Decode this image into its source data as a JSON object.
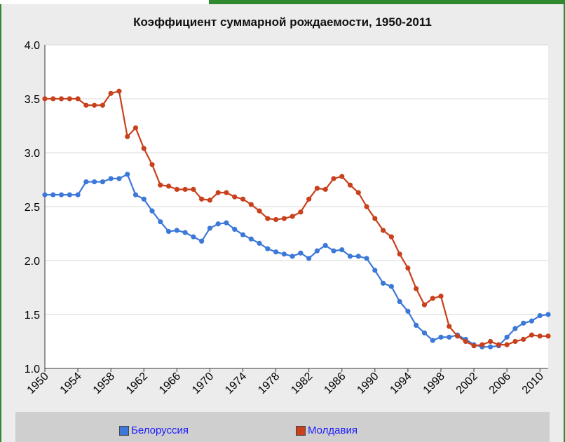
{
  "chart_data": {
    "type": "line",
    "title": "Коэффициент суммарной рождаемости, 1950-2011",
    "xlabel": "",
    "ylabel": "",
    "xlim": [
      1950,
      2011
    ],
    "ylim": [
      1.0,
      4.0
    ],
    "y_ticks": [
      "1.0",
      "1.5",
      "2.0",
      "2.5",
      "3.0",
      "3.5",
      "4.0"
    ],
    "x_ticks": [
      "1950",
      "1954",
      "1958",
      "1962",
      "1966",
      "1970",
      "1974",
      "1978",
      "1982",
      "1986",
      "1990",
      "1994",
      "1998",
      "2002",
      "2006",
      "2010"
    ],
    "grid": true,
    "legend_position": "bottom",
    "x": [
      1950,
      1951,
      1952,
      1953,
      1954,
      1955,
      1956,
      1957,
      1958,
      1959,
      1960,
      1961,
      1962,
      1963,
      1964,
      1965,
      1966,
      1967,
      1968,
      1969,
      1970,
      1971,
      1972,
      1973,
      1974,
      1975,
      1976,
      1977,
      1978,
      1979,
      1980,
      1981,
      1982,
      1983,
      1984,
      1985,
      1986,
      1987,
      1988,
      1989,
      1990,
      1991,
      1992,
      1993,
      1994,
      1995,
      1996,
      1997,
      1998,
      1999,
      2000,
      2001,
      2002,
      2003,
      2004,
      2005,
      2006,
      2007,
      2008,
      2009,
      2010,
      2011
    ],
    "series": [
      {
        "name": "Белоруссия",
        "color": "#3c78d8",
        "values": [
          2.61,
          2.61,
          2.61,
          2.61,
          2.61,
          2.73,
          2.73,
          2.73,
          2.76,
          2.76,
          2.8,
          2.61,
          2.57,
          2.46,
          2.36,
          2.27,
          2.28,
          2.26,
          2.22,
          2.18,
          2.3,
          2.34,
          2.35,
          2.29,
          2.24,
          2.2,
          2.16,
          2.11,
          2.08,
          2.06,
          2.04,
          2.07,
          2.02,
          2.09,
          2.14,
          2.09,
          2.1,
          2.04,
          2.04,
          2.02,
          1.91,
          1.79,
          1.76,
          1.62,
          1.53,
          1.4,
          1.33,
          1.26,
          1.29,
          1.29,
          1.31,
          1.27,
          1.22,
          1.2,
          1.2,
          1.21,
          1.29,
          1.37,
          1.42,
          1.44,
          1.49,
          1.5
        ]
      },
      {
        "name": "Молдавия",
        "color": "#c8401c",
        "values": [
          3.5,
          3.5,
          3.5,
          3.5,
          3.5,
          3.44,
          3.44,
          3.44,
          3.55,
          3.57,
          3.15,
          3.23,
          3.04,
          2.89,
          2.7,
          2.69,
          2.66,
          2.66,
          2.66,
          2.57,
          2.56,
          2.63,
          2.63,
          2.59,
          2.57,
          2.52,
          2.46,
          2.39,
          2.38,
          2.39,
          2.41,
          2.45,
          2.57,
          2.67,
          2.66,
          2.76,
          2.78,
          2.7,
          2.63,
          2.5,
          2.39,
          2.28,
          2.22,
          2.06,
          1.93,
          1.74,
          1.59,
          1.65,
          1.67,
          1.39,
          1.3,
          1.25,
          1.21,
          1.22,
          1.25,
          1.22,
          1.22,
          1.25,
          1.27,
          1.31,
          1.3,
          1.3
        ]
      }
    ]
  }
}
